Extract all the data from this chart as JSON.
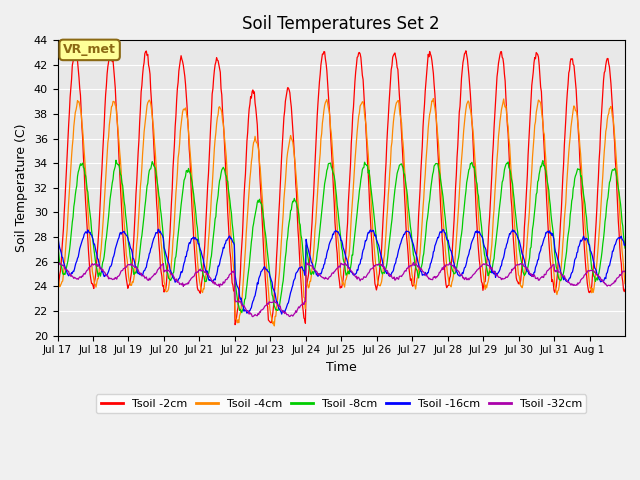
{
  "title": "Soil Temperatures Set 2",
  "xlabel": "Time",
  "ylabel": "Soil Temperature (C)",
  "ylim": [
    20,
    44
  ],
  "yticks": [
    20,
    22,
    24,
    26,
    28,
    30,
    32,
    34,
    36,
    38,
    40,
    42,
    44
  ],
  "bg_color": "#e8e8e8",
  "fig_color": "#f0f0f0",
  "annotation_text": "VR_met",
  "annotation_bg": "#ffff99",
  "annotation_border": "#8B6914",
  "series_colors": [
    "#ff0000",
    "#ff8800",
    "#00cc00",
    "#0000ff",
    "#aa00aa"
  ],
  "series_labels": [
    "Tsoil -2cm",
    "Tsoil -4cm",
    "Tsoil -8cm",
    "Tsoil -16cm",
    "Tsoil -32cm"
  ],
  "n_days": 16,
  "samples_per_day": 48,
  "amplitudes": [
    9.5,
    7.5,
    4.5,
    1.8,
    0.6
  ],
  "baselines": [
    33.0,
    31.0,
    29.0,
    26.2,
    24.7
  ],
  "phase_offsets": [
    0.0,
    0.08,
    0.18,
    0.35,
    0.55
  ],
  "cool_days": [
    5,
    6
  ],
  "hot_days": [
    0,
    1,
    2,
    7,
    8,
    9,
    10,
    11,
    12,
    13
  ],
  "tick_labels": [
    "Jul 17",
    "Jul 18",
    "Jul 19",
    "Jul 20",
    "Jul 21",
    "Jul 22",
    "Jul 23",
    "Jul 24",
    "Jul 25",
    "Jul 26",
    "Jul 27",
    "Jul 28",
    "Jul 29",
    "Jul 30",
    "Jul 31",
    "Aug 1"
  ]
}
